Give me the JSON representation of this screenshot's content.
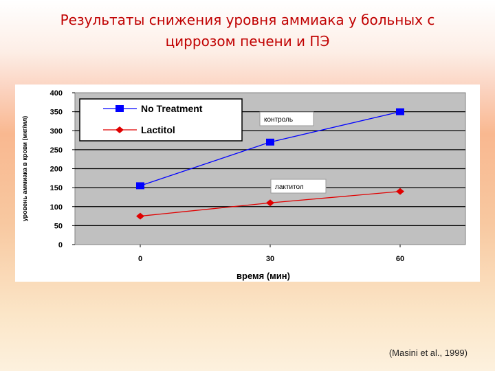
{
  "slide": {
    "title_line1": "Результаты снижения уровня аммиака у больных с",
    "title_line2": "циррозом печени и ПЭ",
    "citation": "(Masini et al., 1999)"
  },
  "colors": {
    "title": "#c00000",
    "plot_bg": "#c0c0c0",
    "no_treatment": "#0000ff",
    "lactitol": "#e00000"
  },
  "chart_data": {
    "type": "line",
    "x": [
      0,
      30,
      60
    ],
    "xlabel": "время (мин)",
    "ylabel": "уровень аммиака в крови (мкг/мл)",
    "ylim": [
      0,
      400
    ],
    "yticks": [
      0,
      50,
      100,
      150,
      200,
      250,
      300,
      350,
      400
    ],
    "grid": true,
    "legend_position": "top-left",
    "series": [
      {
        "name": "No Treatment",
        "values": [
          155,
          270,
          350
        ],
        "color": "#0000ff",
        "marker": "square"
      },
      {
        "name": "Lactitol",
        "values": [
          75,
          110,
          140
        ],
        "color": "#e00000",
        "marker": "diamond"
      }
    ],
    "annotations": [
      {
        "text": "контроль",
        "series": "No Treatment"
      },
      {
        "text": "лактитол",
        "series": "Lactitol"
      }
    ]
  }
}
